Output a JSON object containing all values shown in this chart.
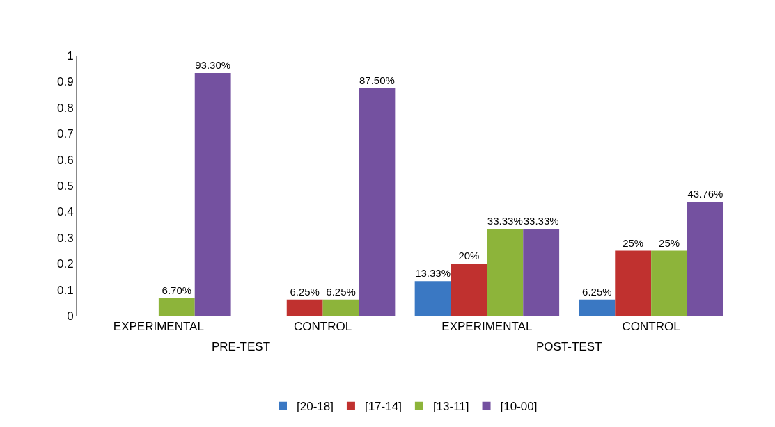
{
  "chart_data": {
    "type": "bar",
    "categories": [
      "EXPERIMENTAL",
      "CONTROL",
      "EXPERIMENTAL",
      "CONTROL"
    ],
    "annotations": [
      "PRE-TEST",
      "POST-TEST"
    ],
    "series": [
      {
        "name": "[20-18]",
        "color": "#3a78c3",
        "values": [
          null,
          null,
          0.1333,
          0.0625
        ],
        "value_labels": [
          null,
          null,
          "13.33%",
          "6.25%"
        ]
      },
      {
        "name": "[17-14]",
        "color": "#c0312f",
        "values": [
          null,
          0.0625,
          0.2,
          0.25
        ],
        "value_labels": [
          null,
          "6.25%",
          "20%",
          "25%"
        ]
      },
      {
        "name": "[13-11]",
        "color": "#8db43a",
        "values": [
          0.067,
          0.0625,
          0.3333,
          0.25
        ],
        "value_labels": [
          "6.70%",
          "6.25%",
          "33.33%",
          "25%"
        ]
      },
      {
        "name": "[10-00]",
        "color": "#7451a0",
        "values": [
          0.933,
          0.875,
          0.3333,
          0.4376
        ],
        "value_labels": [
          "93.30%",
          "87.50%",
          "33.33%",
          "43.76%"
        ]
      }
    ],
    "ylim": [
      0,
      1
    ],
    "yticks": [
      0,
      0.1,
      0.2,
      0.3,
      0.4,
      0.5,
      0.6,
      0.7,
      0.8,
      0.9,
      1
    ],
    "legend": "bottom"
  }
}
